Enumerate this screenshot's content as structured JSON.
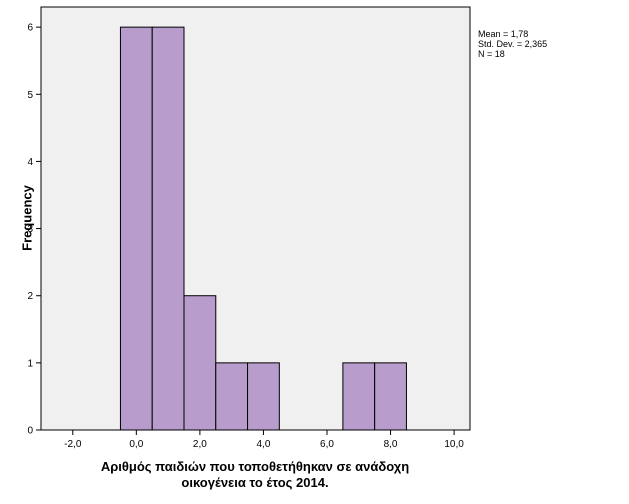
{
  "chart_data": {
    "type": "histogram",
    "bins": [
      {
        "x0": -0.5,
        "x1": 0.5,
        "count": 6
      },
      {
        "x0": 0.5,
        "x1": 1.5,
        "count": 6
      },
      {
        "x0": 1.5,
        "x1": 2.5,
        "count": 2
      },
      {
        "x0": 2.5,
        "x1": 3.5,
        "count": 1
      },
      {
        "x0": 3.5,
        "x1": 4.5,
        "count": 1
      },
      {
        "x0": 6.5,
        "x1": 7.5,
        "count": 1
      },
      {
        "x0": 7.5,
        "x1": 8.5,
        "count": 1
      }
    ],
    "xlim": [
      -3,
      10.5
    ],
    "ylim": [
      0,
      6.3
    ],
    "x_ticks": [
      "-2,0",
      "0,0",
      "2,0",
      "4,0",
      "6,0",
      "8,0",
      "10,0"
    ],
    "x_tick_values": [
      -2,
      0,
      2,
      4,
      6,
      8,
      10
    ],
    "y_ticks": [
      "0",
      "1",
      "2",
      "3",
      "4",
      "5",
      "6"
    ],
    "y_tick_values": [
      0,
      1,
      2,
      3,
      4,
      5,
      6
    ],
    "xlabel_line1": "Αριθμός παιδιών που τοποθετήθηκαν σε ανάδοχη",
    "xlabel_line2": "οικογένεια το έτος 2014.",
    "ylabel": "Frequency",
    "stats": {
      "mean": "Mean = 1,78",
      "std": "Std. Dev. = 2,365",
      "n": "N = 18"
    },
    "legend_position": "top-right",
    "grid": false,
    "colors": {
      "bar_fill": "#b89ccb",
      "plot_bg": "#f0f0f0"
    }
  }
}
